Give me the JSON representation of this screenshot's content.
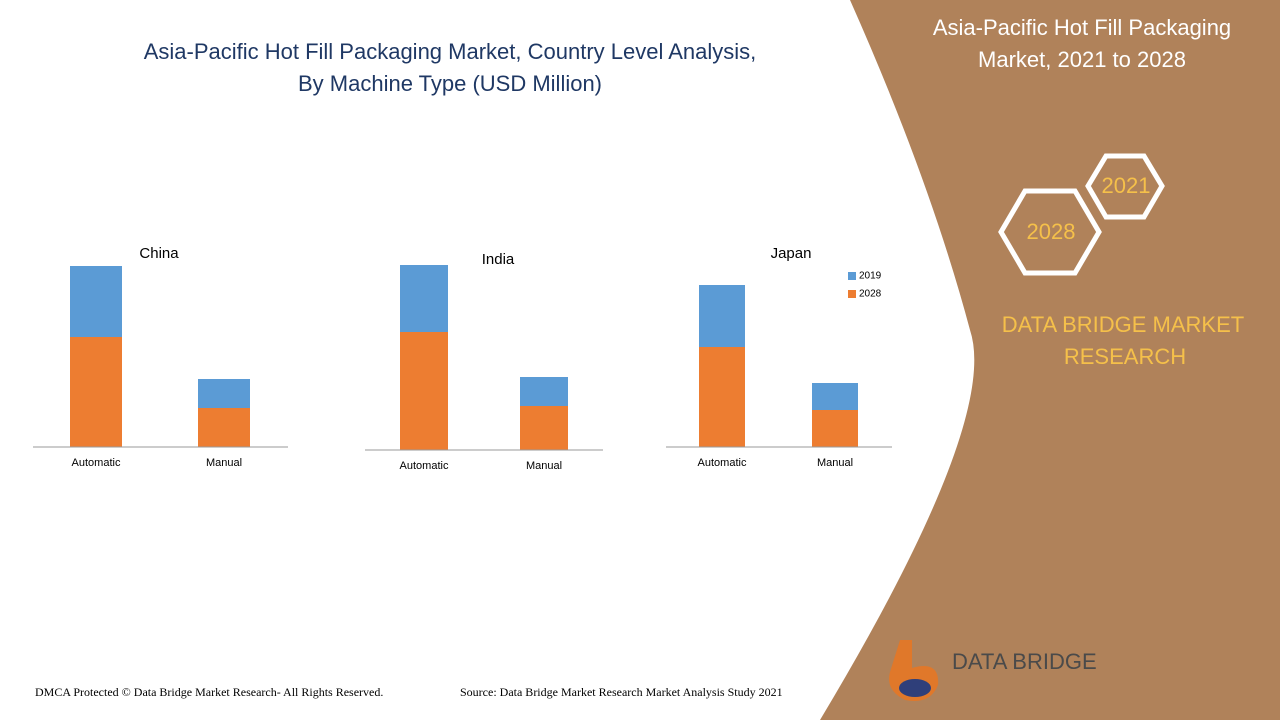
{
  "header": {
    "title_line1": "Asia-Pacific Hot Fill Packaging Market, Country Level Analysis,",
    "title_line2": "By Machine Type (USD Million)"
  },
  "side_panel": {
    "title_line1": "Asia-Pacific Hot Fill Packaging",
    "title_line2": "Market, 2021 to 2028",
    "hex_1": "2021",
    "hex_2": "2028",
    "brand_line1": "DATA BRIDGE MARKET",
    "brand_line2": "RESEARCH",
    "logo_text": "DATA BRIDGE"
  },
  "footer": {
    "copyright": "DMCA Protected © Data Bridge Market Research- All Rights Reserved.",
    "source": "Source: Data Bridge Market Research Market Analysis Study 2021"
  },
  "chart_data": [
    {
      "type": "bar",
      "stacked": true,
      "title": "China",
      "categories": [
        "Automatic",
        "Manual"
      ],
      "series": [
        {
          "name": "2028",
          "color": "#ed7d31",
          "values": [
            110,
            39
          ]
        },
        {
          "name": "2019",
          "color": "#5b9bd5",
          "values": [
            71,
            29
          ]
        }
      ]
    },
    {
      "type": "bar",
      "stacked": true,
      "title": "India",
      "categories": [
        "Automatic",
        "Manual"
      ],
      "series": [
        {
          "name": "2028",
          "color": "#ed7d31",
          "values": [
            118,
            44
          ]
        },
        {
          "name": "2019",
          "color": "#5b9bd5",
          "values": [
            67,
            29
          ]
        }
      ]
    },
    {
      "type": "bar",
      "stacked": true,
      "title": "Japan",
      "legend": true,
      "categories": [
        "Automatic",
        "Manual"
      ],
      "series": [
        {
          "name": "2028",
          "color": "#ed7d31",
          "values": [
            100,
            37
          ]
        },
        {
          "name": "2019",
          "color": "#5b9bd5",
          "values": [
            62,
            27
          ]
        }
      ]
    }
  ]
}
